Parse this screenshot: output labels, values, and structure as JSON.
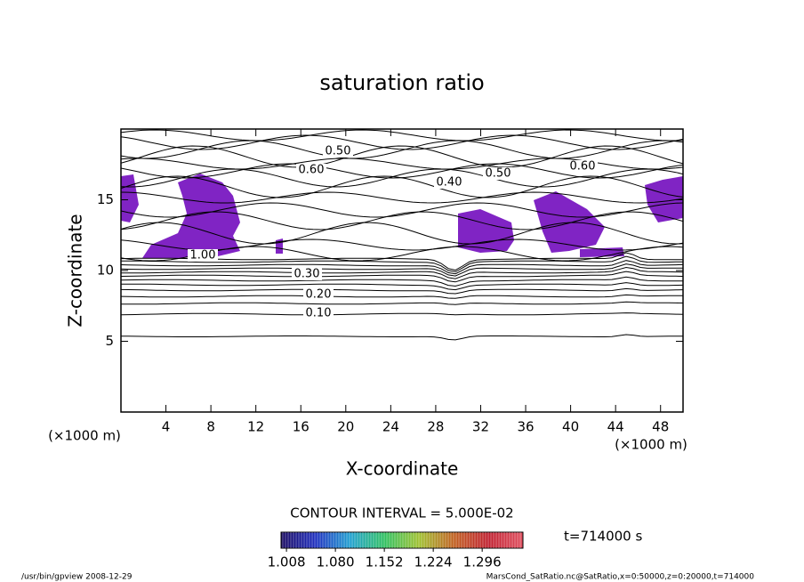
{
  "chart_data": {
    "type": "contour",
    "title": "saturation ratio",
    "x_label": "X-coordinate",
    "y_label": "Z-coordinate",
    "x_unit": "(×1000 m)",
    "y_unit": "(×1000 m)",
    "xlim": [
      0,
      50
    ],
    "xticks": [
      4,
      8,
      12,
      16,
      20,
      24,
      28,
      32,
      36,
      40,
      44,
      48
    ],
    "ylim": [
      0,
      20
    ],
    "yticks": [
      5,
      10,
      15
    ],
    "shade_color": "#8024c4",
    "contour_labels": [
      "0.50",
      "0.60",
      "0.40",
      "0.60",
      "0.50",
      "1.00",
      "0.30",
      "0.20",
      "0.10"
    ],
    "contour_interval": "CONTOUR INTERVAL = 5.000E-02",
    "time_label": "t=714000 s",
    "colorbar": {
      "lim": [
        1.0,
        1.356
      ],
      "ticks": [
        1.008,
        {
          "value": 1.08,
          "label": "1.080"
        },
        1.152,
        1.224,
        1.296
      ],
      "colors": [
        "#1a0a60",
        "#2030c0",
        "#20a0d0",
        "#30c060",
        "#a0c030",
        "#c06020",
        "#c02030",
        "#e05060"
      ]
    },
    "footer_left": "/usr/bin/gpview  2008-12-29",
    "footer_right": "MarsCond_SatRatio.nc@SatRatio,x=0:50000,z=0:20000,t=714000"
  }
}
